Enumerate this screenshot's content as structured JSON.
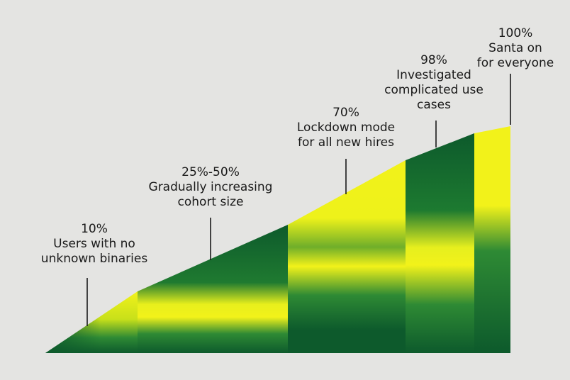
{
  "colors": {
    "background": "#e4e4e2",
    "dark_green": "#0d5a2c",
    "mid_green": "#2e8a34",
    "yellow": "#f2f21a",
    "leader": "#1a1a1a"
  },
  "stages": [
    {
      "percent": "10%",
      "description": [
        "Users with no",
        "unknown binaries"
      ]
    },
    {
      "percent": "25%-50%",
      "description": [
        "Gradually increasing",
        "cohort size"
      ]
    },
    {
      "percent": "70%",
      "description": [
        "Lockdown mode",
        "for all new hires"
      ]
    },
    {
      "percent": "98%",
      "description": [
        "Investigated",
        "complicated use",
        "cases"
      ]
    },
    {
      "percent": "100%",
      "description": [
        "Santa on",
        "for everyone"
      ]
    }
  ]
}
